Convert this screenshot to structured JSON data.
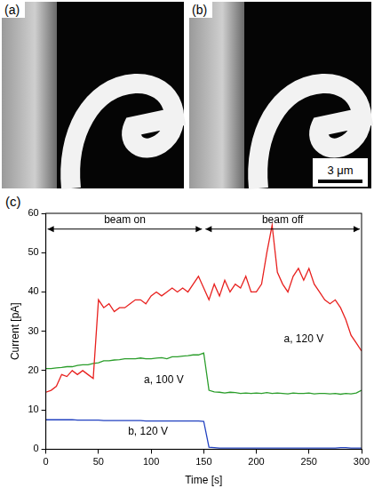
{
  "images": [
    {
      "label": "(a)"
    },
    {
      "label": "(b)",
      "scale_bar": "3 μm"
    }
  ],
  "chart_data": {
    "panel_label": "(c)",
    "type": "line",
    "x_label": "Time [s]",
    "y_label": "Current [pA]",
    "x": [
      0,
      5,
      10,
      15,
      20,
      25,
      30,
      35,
      40,
      45,
      50,
      55,
      60,
      65,
      70,
      75,
      80,
      85,
      90,
      95,
      100,
      105,
      110,
      115,
      120,
      125,
      130,
      135,
      140,
      145,
      150,
      155,
      160,
      165,
      170,
      175,
      180,
      185,
      190,
      195,
      200,
      205,
      210,
      215,
      220,
      225,
      230,
      235,
      240,
      245,
      250,
      255,
      260,
      265,
      270,
      275,
      280,
      285,
      290,
      295,
      300
    ],
    "series": [
      {
        "name": "a, 120 V",
        "color": "#e8201e",
        "label_at": [
          245,
          28
        ],
        "values": [
          14.5,
          15,
          16,
          19,
          18.5,
          20,
          19,
          20,
          19,
          18,
          38,
          36,
          37,
          35,
          36,
          36,
          37,
          38,
          38,
          37,
          39,
          40,
          39,
          40,
          41,
          40,
          41,
          40,
          42,
          44,
          41,
          38,
          42,
          39,
          43,
          40,
          42,
          41,
          44,
          40,
          40,
          42,
          50,
          57,
          45,
          42,
          40,
          44,
          46,
          43,
          46,
          42,
          40,
          38,
          37,
          38,
          36,
          33,
          29,
          27,
          25
        ]
      },
      {
        "name": "a, 100 V",
        "color": "#2a9d2a",
        "label_at": [
          112,
          17.5
        ],
        "values": [
          20.5,
          20.5,
          20.7,
          20.8,
          21,
          21,
          21.3,
          21.5,
          21.5,
          21.8,
          22,
          22.5,
          22.5,
          22.7,
          22.8,
          23,
          23,
          23,
          23.2,
          23,
          23,
          23.2,
          23.3,
          23,
          23.5,
          23.5,
          23.7,
          23.8,
          24,
          24,
          24.5,
          15,
          14.6,
          14.5,
          14.3,
          14.5,
          14.4,
          14.2,
          14.3,
          14.2,
          14.3,
          14.2,
          14.4,
          14.2,
          14.3,
          14.2,
          14.1,
          14.3,
          14.2,
          14.2,
          14.3,
          14.1,
          14.2,
          14.2,
          14.1,
          14.2,
          14,
          14.2,
          14.1,
          14.3,
          15
        ]
      },
      {
        "name": "b, 120 V",
        "color": "#2040c0",
        "label_at": [
          97,
          4.5
        ],
        "values": [
          7.5,
          7.5,
          7.5,
          7.5,
          7.5,
          7.5,
          7.4,
          7.4,
          7.4,
          7.4,
          7.4,
          7.3,
          7.3,
          7.3,
          7.3,
          7.3,
          7.3,
          7.3,
          7.3,
          7.2,
          7.2,
          7.2,
          7.2,
          7.2,
          7.2,
          7.2,
          7.2,
          7.2,
          7.2,
          7.2,
          7.1,
          0.5,
          0.4,
          0.3,
          0.3,
          0.3,
          0.3,
          0.3,
          0.3,
          0.3,
          0.3,
          0.3,
          0.3,
          0.3,
          0.3,
          0.3,
          0.3,
          0.3,
          0.3,
          0.3,
          0.3,
          0.3,
          0.3,
          0.3,
          0.3,
          0.3,
          0.4,
          0.4,
          0.3,
          0.3,
          0.3
        ]
      }
    ],
    "annotations": [
      {
        "text": "beam on",
        "x": [
          0,
          150
        ],
        "y": 56
      },
      {
        "text": "beam off",
        "x": [
          150,
          300
        ],
        "y": 56
      }
    ],
    "xlim": [
      0,
      300
    ],
    "xticks": [
      0,
      50,
      100,
      150,
      200,
      250,
      300
    ],
    "ylim": [
      0,
      60
    ],
    "yticks": [
      0,
      10,
      20,
      30,
      40,
      50,
      60
    ],
    "grid": false
  }
}
